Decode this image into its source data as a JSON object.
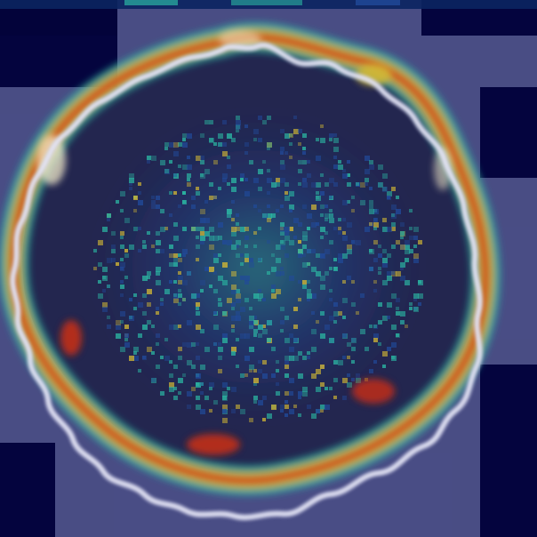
{
  "image": {
    "kind": "heatmap-overlay-microscopy",
    "colors": {
      "background": "#03033a",
      "tile_tint": "#4d5189",
      "droplet_fill": "#23264f",
      "rim_ring": "#cfd0ea",
      "heat_low": "#214a9a",
      "heat_mid": "#2bb5a2",
      "heat_high": "#d1b734",
      "heat_peak": "#d62f12",
      "heat_white": "#f3e9c9"
    }
  }
}
